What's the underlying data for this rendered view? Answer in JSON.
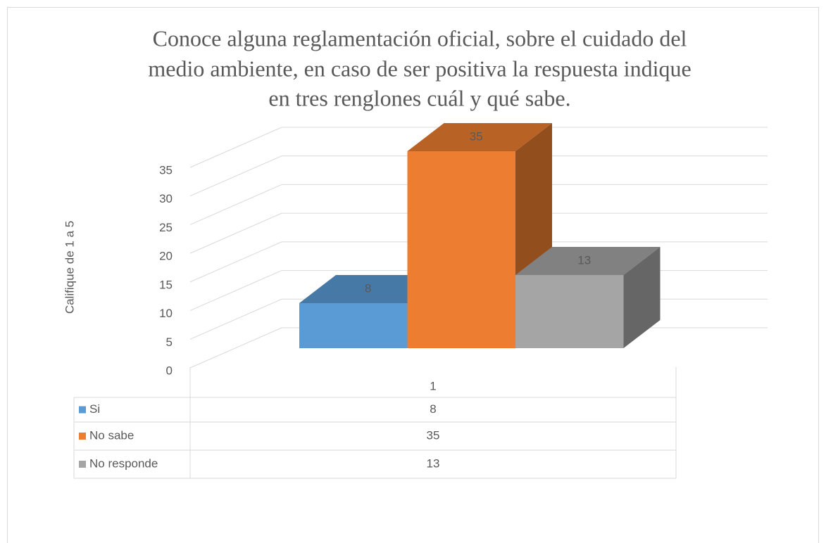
{
  "chart_data": {
    "type": "bar3d",
    "title": [
      "Conoce alguna reglamentación oficial, sobre el cuidado del",
      "medio ambiente, en caso de ser positiva la respuesta indique",
      "en tres renglones cuál y qué sabe."
    ],
    "y_label": "Califique de 1  a 5",
    "categories": [
      "1"
    ],
    "series": [
      {
        "name": "Si",
        "color": "#5b9bd5",
        "values": [
          8
        ]
      },
      {
        "name": "No sabe",
        "color": "#ed7d31",
        "values": [
          35
        ]
      },
      {
        "name": "No responde",
        "color": "#a5a5a5",
        "values": [
          13
        ]
      }
    ],
    "ylim": [
      0,
      35
    ],
    "yticks": [
      0,
      5,
      10,
      15,
      20,
      25,
      30,
      35
    ],
    "grid": true,
    "data_table": true
  }
}
